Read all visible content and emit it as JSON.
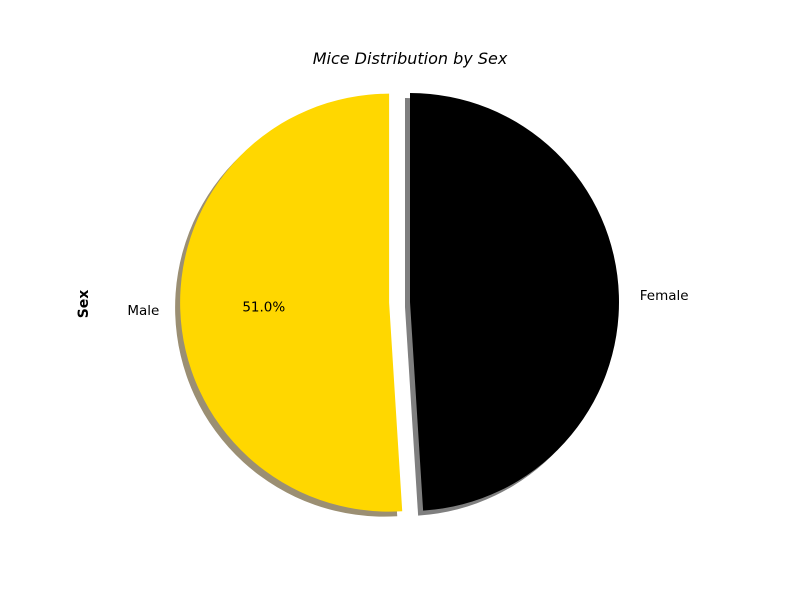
{
  "chart_data": {
    "type": "pie",
    "title": "Mice Distribution by Sex",
    "ylabel": "Sex",
    "labels": [
      "Female",
      "Male"
    ],
    "values": [
      49.0,
      51.0
    ],
    "value_labels": [
      "",
      "51.0%"
    ],
    "colors": [
      "#000000",
      "#FFD700"
    ],
    "explode": [
      0,
      0.1
    ],
    "shadow": true,
    "start_angle": 90
  }
}
